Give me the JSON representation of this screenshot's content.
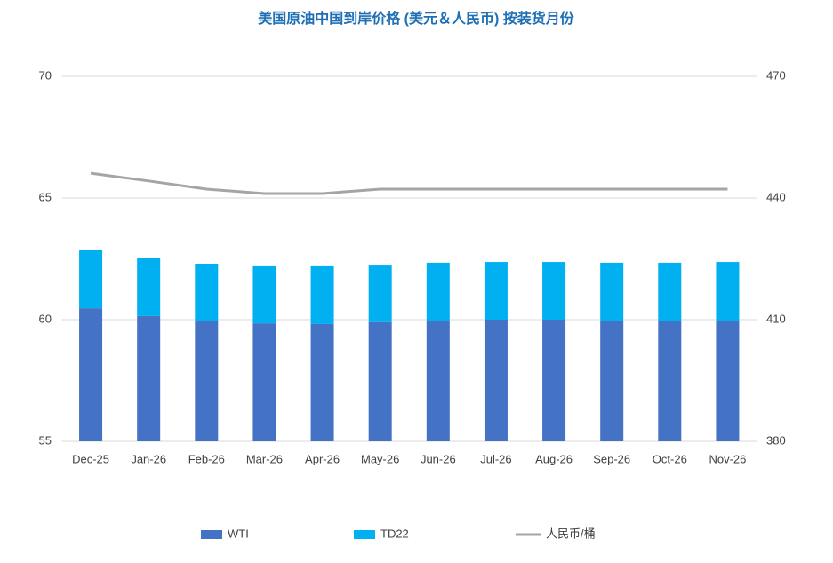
{
  "chart_data": {
    "type": "bar_line",
    "title": "美国原油中国到岸价格 (美元＆人民币) 按装货月份",
    "categories": [
      "Dec-25",
      "Jan-26",
      "Feb-26",
      "Mar-26",
      "Apr-26",
      "May-26",
      "Jun-26",
      "Jul-26",
      "Aug-26",
      "Sep-26",
      "Oct-26",
      "Nov-26"
    ],
    "series": [
      {
        "name": "WTI",
        "color": "#4472c4",
        "type": "bar",
        "values": [
          60.47,
          60.15,
          59.93,
          59.85,
          59.82,
          59.9,
          59.96,
          60.0,
          60.0,
          59.96,
          59.96,
          59.96
        ]
      },
      {
        "name": "TD22",
        "color": "#00b0f0",
        "type": "bar",
        "values": [
          2.38,
          2.37,
          2.37,
          2.38,
          2.41,
          2.36,
          2.38,
          2.37,
          2.37,
          2.38,
          2.38,
          2.41
        ]
      },
      {
        "name": "人民币/桶",
        "color": "#a5a5a5",
        "type": "line",
        "axis": "y2",
        "values": [
          446.1,
          444.2,
          442.2,
          441.1,
          441.1,
          442.2,
          442.2,
          442.2,
          442.2,
          442.2,
          442.2,
          442.2
        ]
      }
    ],
    "ylim": [
      55,
      70
    ],
    "yticks": [
      55,
      60,
      65,
      70
    ],
    "y2lim": [
      380,
      470
    ],
    "y2ticks": [
      380,
      410,
      440,
      470
    ],
    "stacked": true,
    "grid": true,
    "legend": "bottom"
  }
}
